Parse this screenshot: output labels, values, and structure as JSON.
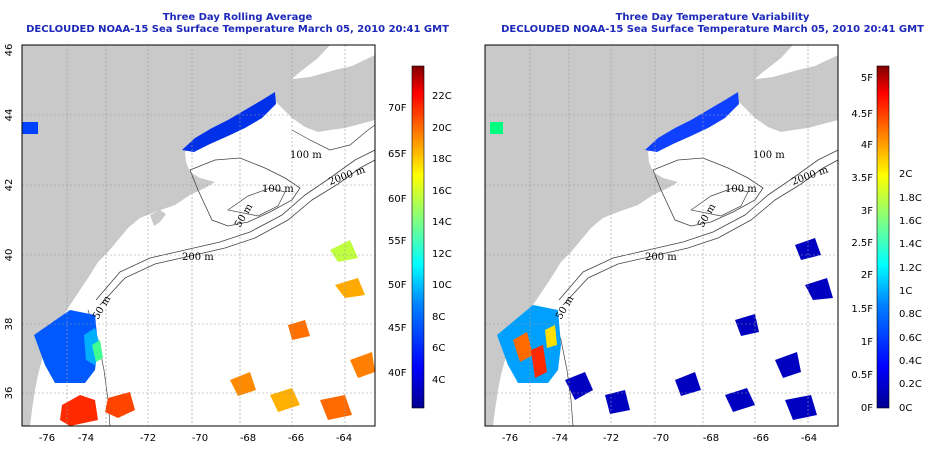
{
  "colors": {
    "land": "#c9c9c9",
    "ocean": "#ffffff",
    "title": "#1d29b8",
    "grid": "#9a9a9a",
    "contour": "#444444",
    "colormap": [
      "#00008f",
      "#0000ff",
      "#0080ff",
      "#00ffff",
      "#80ff80",
      "#ffff00",
      "#ff8000",
      "#ff0000",
      "#800000"
    ]
  },
  "axes": {
    "x_ticks": [
      "-76",
      "-74",
      "-72",
      "-70",
      "-68",
      "-66",
      "-64"
    ],
    "y_ticks": [
      "36",
      "38",
      "40",
      "42",
      "44",
      "46"
    ]
  },
  "contour_labels": [
    "100 m",
    "100 m",
    "2000 m",
    "50 m",
    "200 m",
    "50 m"
  ],
  "panels": [
    {
      "title": "Three Day Rolling Average",
      "subtitle": "DECLOUDED NOAA-15 Sea Surface Temperature March 05, 2010 20:41 GMT",
      "colorbar_celsius": [
        "22C",
        "20C",
        "18C",
        "16C",
        "14C",
        "12C",
        "10C",
        "8C",
        "6C",
        "4C"
      ],
      "colorbar_fahrenheit": [
        "70F",
        "65F",
        "60F",
        "55F",
        "50F",
        "45F",
        "40F"
      ]
    },
    {
      "title": "Three Day Temperature Variability",
      "subtitle": "DECLOUDED NOAA-15 Sea Surface Temperature March 05, 2010 20:41 GMT",
      "colorbar_celsius": [
        "2C",
        "1.8C",
        "1.6C",
        "1.4C",
        "1.2C",
        "1C",
        "0.8C",
        "0.6C",
        "0.4C",
        "0.2C",
        "0C"
      ],
      "colorbar_fahrenheit": [
        "5F",
        "4.5F",
        "4F",
        "3.5F",
        "3F",
        "2.5F",
        "2F",
        "1.5F",
        "1F",
        "0.5F",
        "0F"
      ]
    }
  ]
}
